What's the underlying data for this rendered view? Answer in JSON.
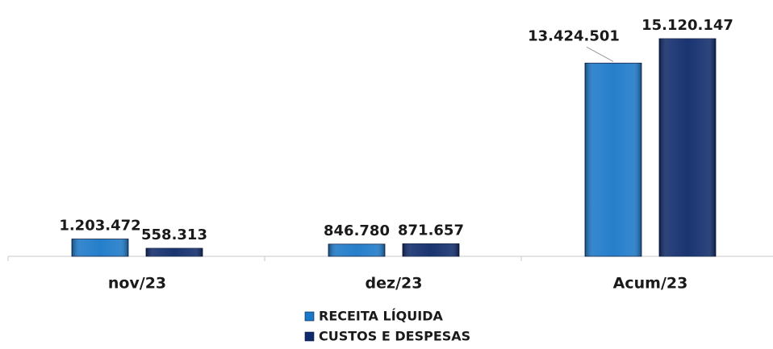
{
  "chart_data": {
    "type": "bar",
    "categories": [
      "nov/23",
      "dez/23",
      "Acum/23"
    ],
    "series": [
      {
        "name": "RECEITA LÍQUIDA",
        "color": "#1a78c8",
        "values": [
          1203472,
          846780,
          13424501
        ],
        "value_labels": [
          "1.203.472",
          "846.780",
          "13.424.501"
        ]
      },
      {
        "name": "CUSTOS E DESPESAS",
        "color": "#0e2a6a",
        "values": [
          558313,
          871657,
          15120147
        ],
        "value_labels": [
          "558.313",
          "871.657",
          "15.120.147"
        ]
      }
    ],
    "legend": "bottom"
  }
}
